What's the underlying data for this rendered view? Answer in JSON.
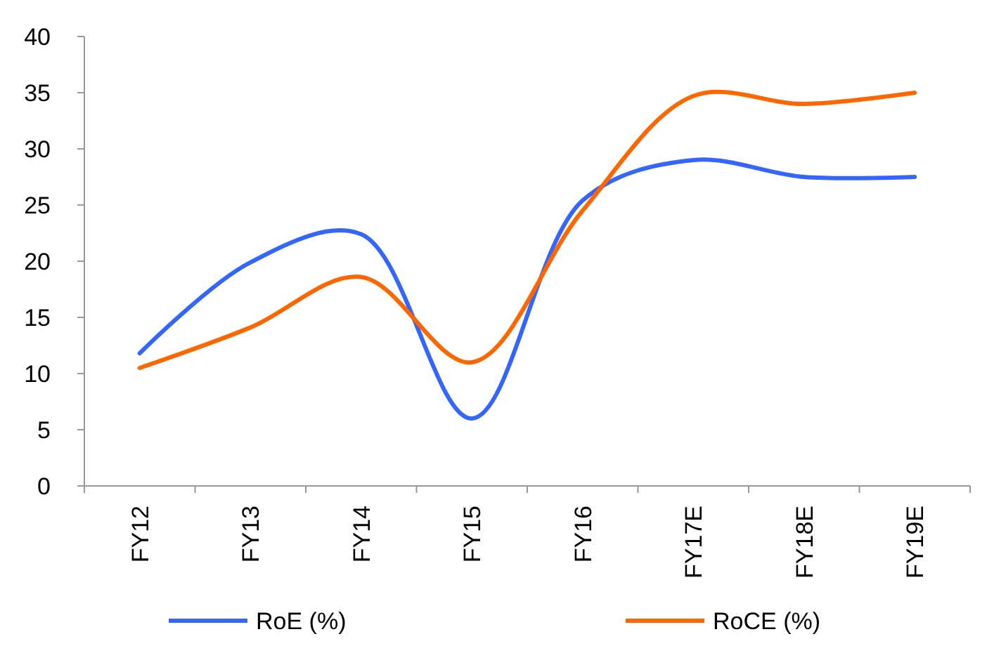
{
  "chart_data": {
    "type": "line",
    "categories": [
      "FY12",
      "FY13",
      "FY14",
      "FY15",
      "FY16",
      "FY17E",
      "FY18E",
      "FY19E"
    ],
    "series": [
      {
        "name": "RoE (%)",
        "color": "#3366ff",
        "values": [
          11.8,
          19.9,
          22.4,
          6.0,
          25.4,
          29.0,
          27.5,
          27.5
        ]
      },
      {
        "name": "RoCE (%)",
        "color": "#ff6600",
        "values": [
          10.5,
          14.1,
          18.6,
          11.0,
          24.5,
          34.7,
          34.0,
          35.0
        ]
      }
    ],
    "ylim": [
      0,
      40
    ],
    "yticks": [
      0,
      5,
      10,
      15,
      20,
      25,
      30,
      35,
      40
    ],
    "grid": false,
    "legend": "bottom",
    "marker": "none",
    "line_style": "solid"
  }
}
